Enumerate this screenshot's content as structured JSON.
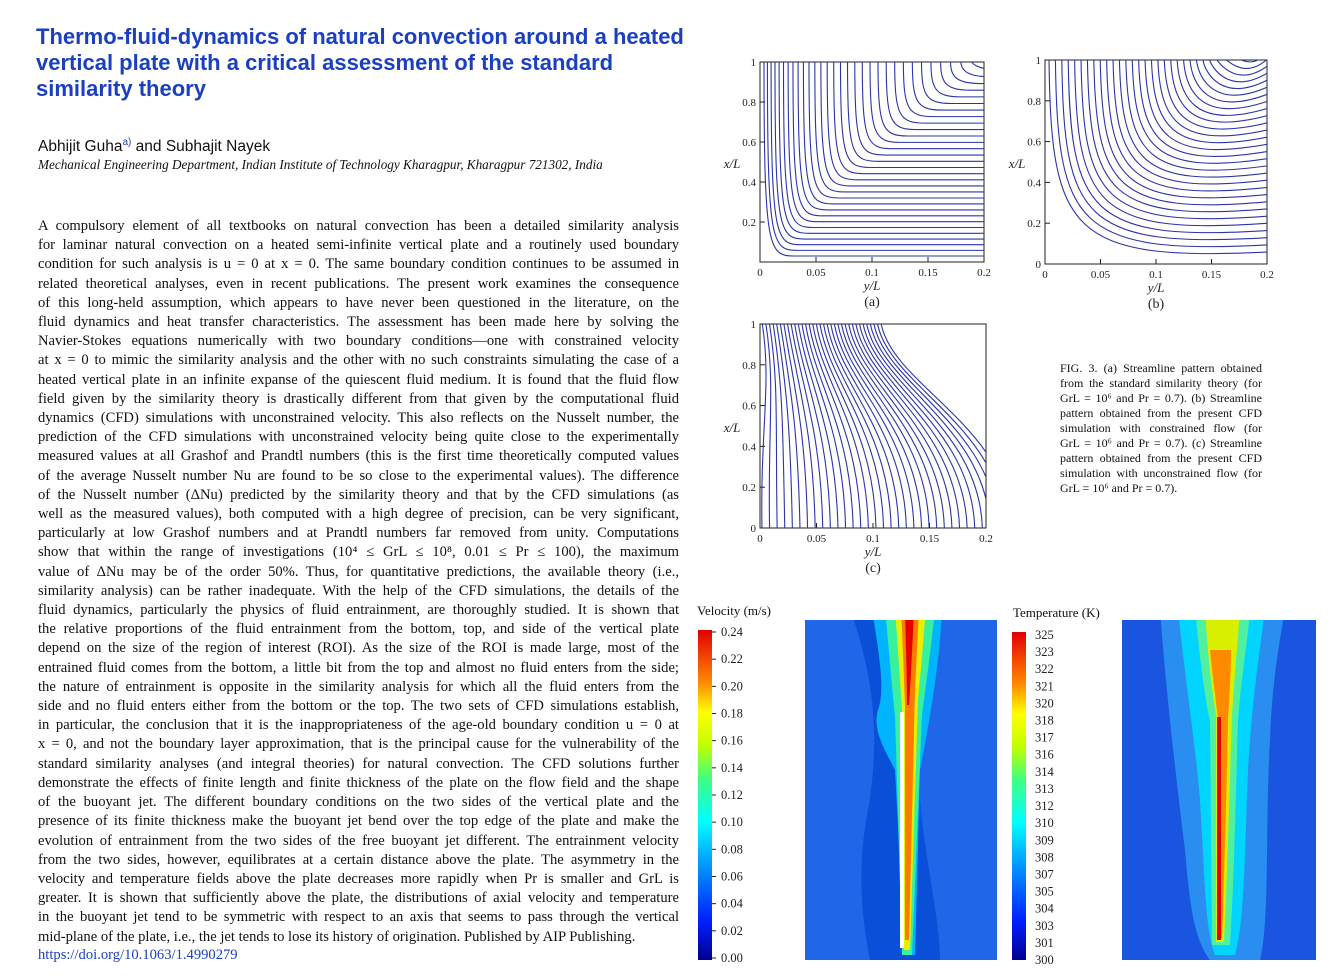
{
  "paper": {
    "title_lines": [
      "Thermo-fluid-dynamics of natural convection around a heated",
      "vertical plate with a critical assessment of the standard",
      "similarity theory"
    ],
    "author1": "Abhijit Guha",
    "author1_sup": "a)",
    "author_rest": " and Subhajit Nayek",
    "affiliation": "Mechanical Engineering Department, Indian Institute of Technology Kharagpur, Kharagpur 721302, India",
    "abstract_lines": [
      "A compulsory element of all textbooks on natural convection has been a detailed similarity analysis",
      "for laminar natural convection on a heated semi-infinite vertical plate and a routinely used boundary",
      "condition for such analysis is u = 0 at x = 0. The same boundary condition continues to be assumed in",
      "related theoretical analyses, even in recent publications. The present work examines the consequence",
      "of this long-held assumption, which appears to have never been questioned in the literature, on the",
      "fluid dynamics and heat transfer characteristics. The assessment has been made here by solving the",
      "Navier-Stokes equations numerically with two boundary conditions—one with constrained velocity",
      "at x = 0 to mimic the similarity analysis and the other with no such constraints simulating the case of a",
      "heated vertical plate in an infinite expanse of the quiescent fluid medium. It is found that the fluid flow",
      "field given by the similarity theory is drastically different from that given by the computational fluid",
      "dynamics (CFD) simulations with unconstrained velocity. This also reflects on the Nusselt number, the",
      "prediction of the CFD simulations with unconstrained velocity being quite close to the experimentally",
      "measured values at all Grashof and Prandtl numbers (this is the first time theoretically computed values",
      "of the average Nusselt number Nu are found to be so close to the experimental values). The difference",
      "of the Nusselt number (ΔNu) predicted by the similarity theory and that by the CFD simulations (as",
      "well as the measured values), both computed with a high degree of precision, can be very significant,",
      "particularly at low Grashof numbers and at Prandtl numbers far removed from unity. Computations",
      "show that within the range of investigations (10⁴ ≤ GrL ≤ 10⁸, 0.01 ≤ Pr ≤ 100), the maximum",
      "value of ΔNu may be of the order 50%. Thus, for quantitative predictions, the available theory (i.e.,",
      "similarity analysis) can be rather inadequate. With the help of the CFD simulations, the details of the",
      "fluid dynamics, particularly the physics of fluid entrainment, are thoroughly studied. It is shown that",
      "the relative proportions of the fluid entrainment from the bottom, top, and side of the vertical plate",
      "depend on the size of the region of interest (ROI). As the size of the ROI is made large, most of the",
      "entrained fluid comes from the bottom, a little bit from the top and almost no fluid enters from the side;",
      "the nature of entrainment is opposite in the similarity analysis for which all the fluid enters from the",
      "side and no fluid enters either from the bottom or the top. The two sets of CFD simulations establish,",
      "in particular, the conclusion that it is the inappropriateness of the age-old boundary condition u = 0 at",
      "x = 0, and not the boundary layer approximation, that is the principal cause for the vulnerability of the",
      "standard similarity analyses (and integral theories) for natural convection. The CFD solutions further",
      "demonstrate the effects of finite length and finite thickness of the plate on the flow field and the shape",
      "of the buoyant jet. The different boundary conditions on the two sides of the vertical plate and the",
      "presence of its finite thickness make the buoyant jet bend over the top edge of the plate and make the",
      "evolution of entrainment from the two sides of the free buoyant jet different. The entrainment velocity",
      "from the two sides, however, equilibrates at a certain distance above the plate. The asymmetry in the",
      "velocity and temperature fields above the plate decreases more rapidly when Pr is smaller and GrL is",
      "greater. It is shown that sufficiently above the plate, the distributions of axial velocity and temperature",
      "in the buoyant jet tend to be symmetric with respect to an axis that seems to pass through the vertical",
      "mid-plane of the plate, i.e., the jet tends to lose its history of origination. Published by AIP Publishing."
    ],
    "doi": "https://doi.org/10.1063/1.4990279"
  },
  "figure": {
    "caption": "FIG. 3. (a) Streamline pattern obtained from the standard similarity theory (for GrL = 10⁶ and Pr = 0.7). (b) Streamline pattern obtained from the present CFD simulation with constrained flow (for GrL = 10⁶ and Pr = 0.7). (c) Streamline pattern obtained from the present CFD simulation with unconstrained flow (for GrL = 10⁶ and Pr = 0.7).",
    "panel_labels": [
      "(a)",
      "(b)",
      "(c)"
    ],
    "xlabel": "y/L",
    "ylabel": "x/L",
    "x_ticks": [
      "0",
      "0.05",
      "0.1",
      "0.15",
      "0.2"
    ],
    "y_ticks_a": [
      "0.2",
      "0.4",
      "0.6",
      "0.8",
      "1"
    ],
    "y_ticks_bc": [
      "0",
      "0.2",
      "0.4",
      "0.6",
      "0.8",
      "1"
    ],
    "streamline_color": "#2a35a8"
  },
  "contours": {
    "velocity_title": "Velocity (m/s)",
    "velocity_ticks": [
      "0.24",
      "0.22",
      "0.20",
      "0.18",
      "0.16",
      "0.14",
      "0.12",
      "0.10",
      "0.08",
      "0.06",
      "0.04",
      "0.02",
      "0.00"
    ],
    "temperature_title": "Temperature (K)",
    "temperature_ticks": [
      "325",
      "323",
      "322",
      "321",
      "320",
      "318",
      "317",
      "316",
      "314",
      "313",
      "312",
      "310",
      "309",
      "308",
      "307",
      "305",
      "304",
      "303",
      "301",
      "300"
    ]
  }
}
